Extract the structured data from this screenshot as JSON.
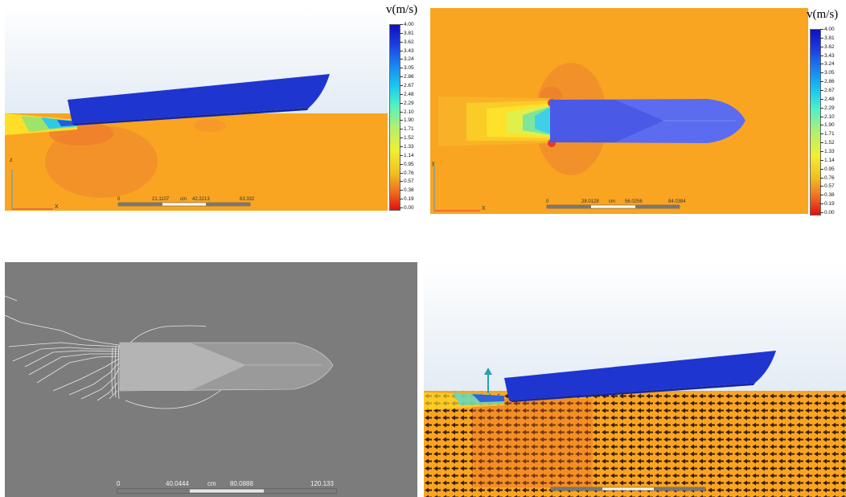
{
  "colors": {
    "water": "#f9a521",
    "sky": "#e6eef6",
    "hull": "#1f35d0",
    "gray_bg": "#7c7c7c",
    "arrow": "#3a1e0a"
  },
  "legend": {
    "title": "v(m/s)",
    "ticks": [
      "4.00",
      "3.81",
      "3.62",
      "3.43",
      "3.24",
      "3.05",
      "2.86",
      "2.67",
      "2.48",
      "2.29",
      "2.10",
      "1.90",
      "1.71",
      "1.52",
      "1.33",
      "1.14",
      "0.95",
      "0.76",
      "0.57",
      "0.38",
      "0.19",
      "0.00"
    ]
  },
  "panels": {
    "top_left": {
      "axis_z": "z",
      "axis_x": "X",
      "scale": [
        "0",
        "21.1107",
        "cm",
        "42.2213",
        "63.332"
      ]
    },
    "top_right": {
      "axis_y": "y",
      "axis_x": "X",
      "scale": [
        "0",
        "28.0128",
        "cm",
        "56.0256",
        "84.0384"
      ]
    },
    "bottom_left": {
      "scale": [
        "0",
        "40.0444",
        "cm",
        "80.0888",
        "120.133"
      ]
    }
  }
}
